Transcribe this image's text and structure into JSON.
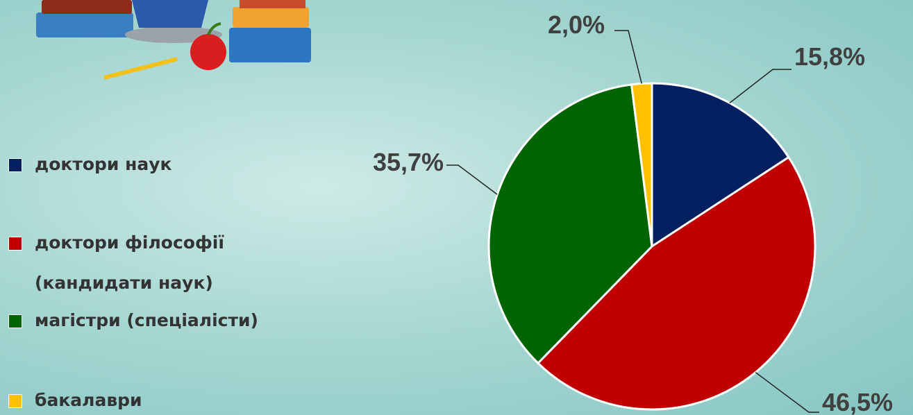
{
  "chart_data": {
    "type": "pie",
    "categories": [
      "доктори наук",
      "доктори філософії (кандидати наук)",
      "магістри (спеціалісти)",
      "бакалаври"
    ],
    "values": [
      15.8,
      46.5,
      35.7,
      2.0
    ],
    "value_labels": [
      "15,8%",
      "46,5%",
      "35,7%",
      "2,0%"
    ],
    "colors": [
      "#002060",
      "#c00000",
      "#006400",
      "#ffc000"
    ],
    "legend": "left"
  }
}
